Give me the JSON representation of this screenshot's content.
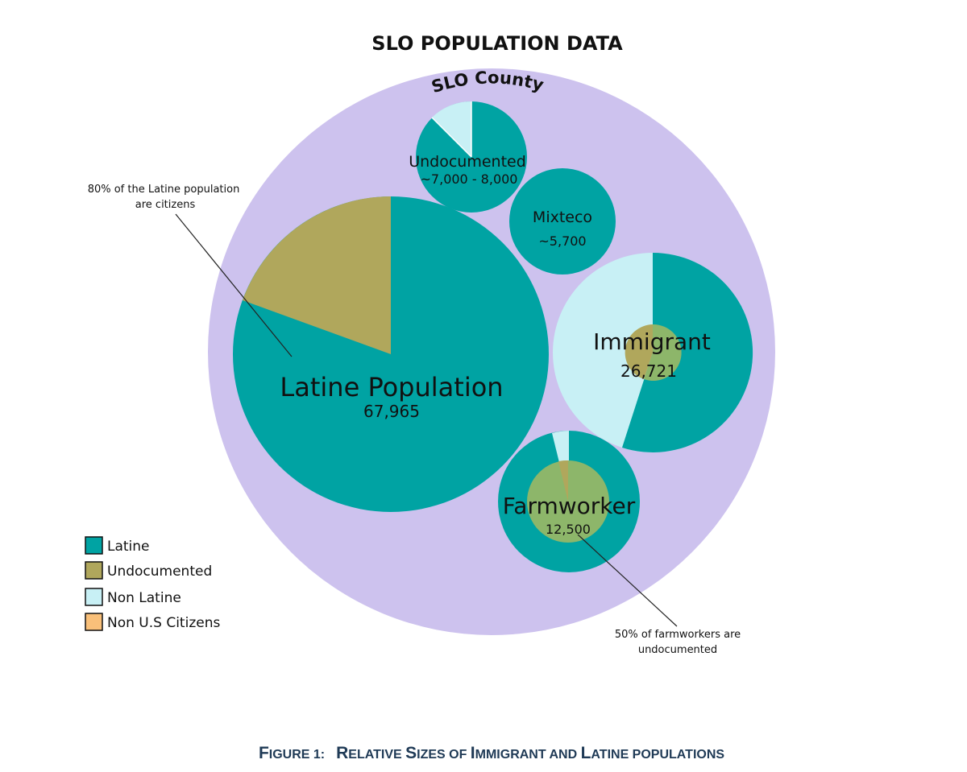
{
  "title": "SLO POPULATION DATA",
  "outer_label": "SLO County",
  "circles": {
    "undocumented": {
      "label": "Undocumented",
      "value": "~7,000 - 8,000"
    },
    "mixteco": {
      "label": "Mixteco",
      "value": "~5,700"
    },
    "latine": {
      "label": "Latine Population",
      "value": "67,965"
    },
    "immigrant": {
      "label": "Immigrant",
      "value": "26,721"
    },
    "farmworker": {
      "label": "Farmworker",
      "value": "12,500"
    }
  },
  "notes": {
    "latine_line1": "80% of the Latine population",
    "latine_line2": "are citizens",
    "farm_line1": "50% of farmworkers are",
    "farm_line2": "undocumented"
  },
  "legend": [
    {
      "label": "Latine",
      "color": "#00a3a3"
    },
    {
      "label": "Undocumented",
      "color": "#b0a75c"
    },
    {
      "label": "Non Latine",
      "color": "#c8f0f5"
    },
    {
      "label": "Non U.S Citizens",
      "color": "#f9c07a"
    }
  ],
  "caption": {
    "prefix": "F",
    "prefix_rest": "IGURE 1:",
    "w1": "R",
    "w1_rest": "ELATIVE ",
    "w2": "S",
    "w2_rest": "IZES OF ",
    "w3": "I",
    "w3_rest": "MMIGRANT AND ",
    "w4": "L",
    "w4_rest": "ATINE POPULATIONS"
  },
  "colors": {
    "county": "#cdc2ee",
    "latine": "#00a3a3",
    "undocumented": "#b0a75c",
    "nonlatine": "#c8f0f5",
    "overlap": "#8db66a"
  }
}
